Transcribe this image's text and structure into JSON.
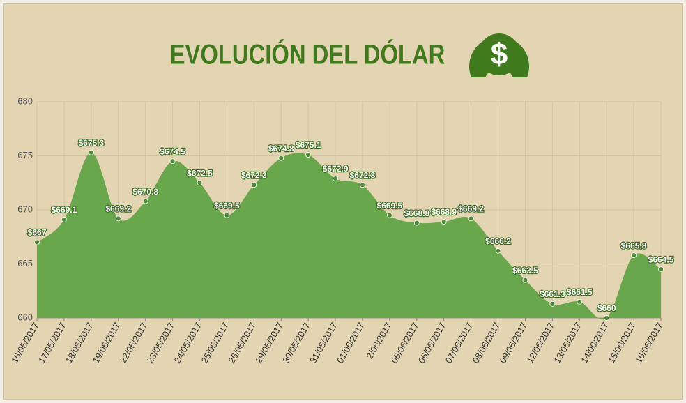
{
  "chart_data": {
    "type": "area",
    "title": "EVOLUCIÓN DEL DÓLAR",
    "categories": [
      "16/05/2017",
      "17/05/2017",
      "18/05/2017",
      "19/05/2017",
      "22/05/2017",
      "23/05/2017",
      "24/05/2017",
      "25/05/2017",
      "26/05/2017",
      "29/05/2017",
      "30/05/2017",
      "31/05/2017",
      "01/06/2017",
      "2/06/2017",
      "05/06/2017",
      "06/06/2017",
      "07/06/2017",
      "08/06/2017",
      "09/06/2017",
      "12/06/2017",
      "13/06/2017",
      "14/06/2017",
      "15/06/2017",
      "16/06/2017"
    ],
    "values": [
      667,
      669.1,
      675.3,
      669.2,
      670.8,
      674.5,
      672.5,
      669.5,
      672.3,
      674.8,
      675.1,
      672.9,
      672.3,
      669.5,
      668.8,
      668.9,
      669.2,
      666.2,
      663.5,
      661.3,
      661.5,
      660,
      665.8,
      664.5
    ],
    "value_labels": [
      "$667",
      "$669.1",
      "$675.3",
      "$669.2",
      "$670.8",
      "$674.5",
      "$672.5",
      "$669.5",
      "$672.3",
      "$674.8",
      "$675.1",
      "$672.9",
      "$672.3",
      "$669.5",
      "$668.8",
      "$668.9",
      "$669.2",
      "$666.2",
      "$663.5",
      "$661.3",
      "$661.5",
      "$660",
      "$665.8",
      "$664.5"
    ],
    "color": "#69a74d",
    "ylim": [
      660,
      680
    ],
    "yticks": [
      660,
      665,
      670,
      675,
      680
    ],
    "grid": true
  }
}
